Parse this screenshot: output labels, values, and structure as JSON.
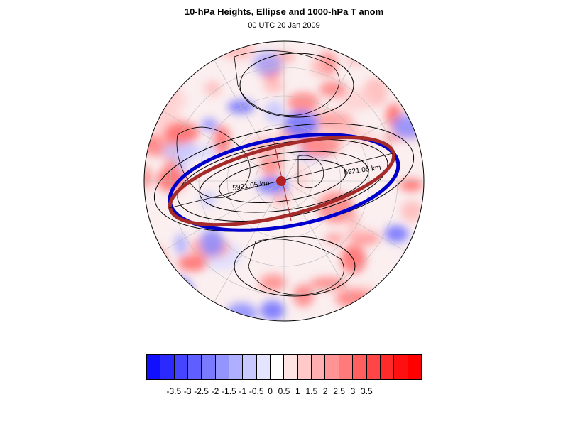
{
  "title": "10-hPa Heights, Ellipse and 1000-hPa T anom",
  "subtitle": "00 UTC 20 Jan 2009",
  "annotations": {
    "ellipse_label_right": "5921.05 km",
    "ellipse_label_left": "5921.05 km"
  },
  "colors": {
    "ellipse": "#a52a2a",
    "contour_highlight": "#0000cc",
    "centroid": "#b22222",
    "contours": "#000000"
  },
  "colorbar": {
    "colors": [
      "#1010ff",
      "#2a2aff",
      "#4545ff",
      "#5f5fff",
      "#7a7aff",
      "#9494ff",
      "#afafff",
      "#c9c9ff",
      "#e4e4ff",
      "#ffffff",
      "#ffe4e4",
      "#ffc9c9",
      "#ffafaf",
      "#ff9494",
      "#ff7a7a",
      "#ff5f5f",
      "#ff4545",
      "#ff2a2a",
      "#ff1010",
      "#ff0000"
    ],
    "labels": [
      "-3.5",
      "-3",
      "-2.5",
      "-2",
      "-1.5",
      "-1",
      "-0.5",
      "0",
      "0.5",
      "1",
      "1.5",
      "2",
      "2.5",
      "3",
      "3.5"
    ]
  }
}
